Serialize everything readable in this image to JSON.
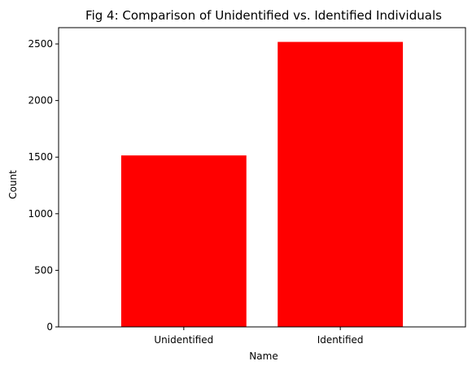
{
  "chart_data": {
    "type": "bar",
    "title": "Fig 4: Comparison of Unidentified vs. Identified Individuals",
    "xlabel": "Name",
    "ylabel": "Count",
    "categories": [
      "Unidentified",
      "Identified"
    ],
    "values": [
      1515,
      2518
    ],
    "ylim": [
      0,
      2644
    ],
    "yticks": [
      0,
      500,
      1000,
      1500,
      2000,
      2500
    ],
    "bar_color": "#ff0000",
    "grid": false
  }
}
